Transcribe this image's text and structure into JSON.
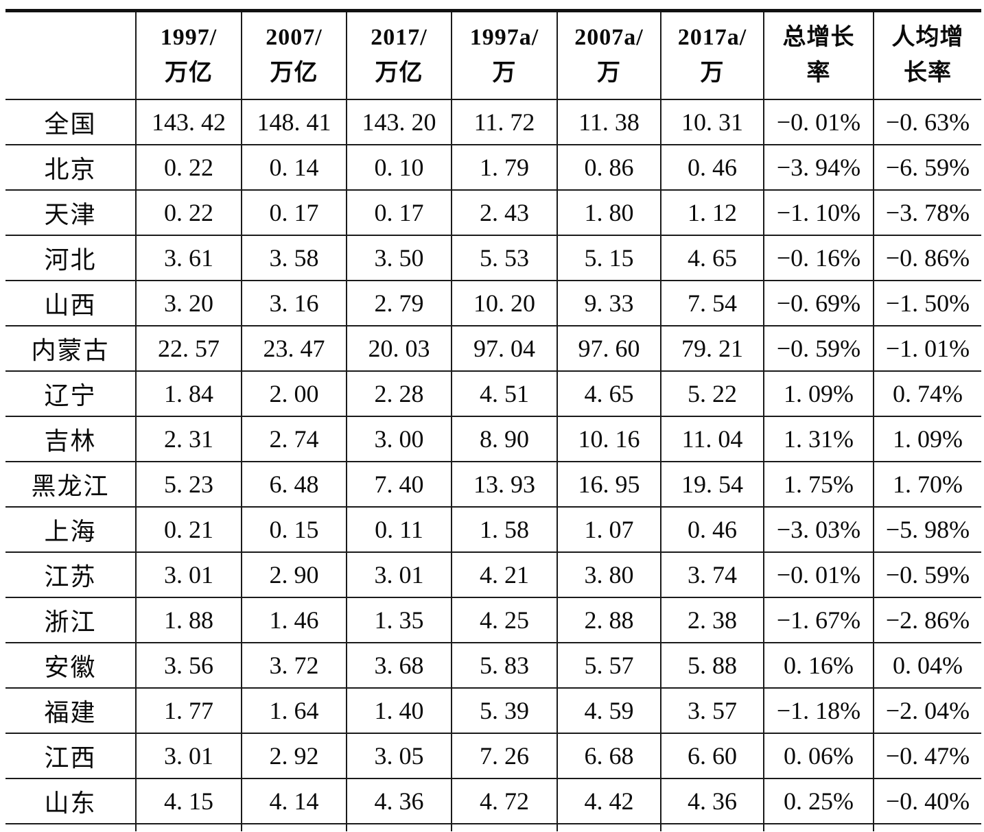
{
  "table": {
    "columns": [
      {
        "line1": "",
        "line2": ""
      },
      {
        "line1": "1997/",
        "line2": "万亿"
      },
      {
        "line1": "2007/",
        "line2": "万亿"
      },
      {
        "line1": "2017/",
        "line2": "万亿"
      },
      {
        "line1": "1997a/",
        "line2": "万"
      },
      {
        "line1": "2007a/",
        "line2": "万"
      },
      {
        "line1": "2017a/",
        "line2": "万"
      },
      {
        "line1": "总增长",
        "line2": "率"
      },
      {
        "line1": "人均增",
        "line2": "长率"
      }
    ],
    "rows": [
      {
        "name": "全国",
        "values": [
          "143. 42",
          "148. 41",
          "143. 20",
          "11. 72",
          "11. 38",
          "10. 31",
          "−0. 01%",
          "−0. 63%"
        ]
      },
      {
        "name": "北京",
        "values": [
          "0. 22",
          "0. 14",
          "0. 10",
          "1. 79",
          "0. 86",
          "0. 46",
          "−3. 94%",
          "−6. 59%"
        ]
      },
      {
        "name": "天津",
        "values": [
          "0. 22",
          "0. 17",
          "0. 17",
          "2. 43",
          "1. 80",
          "1. 12",
          "−1. 10%",
          "−3. 78%"
        ]
      },
      {
        "name": "河北",
        "values": [
          "3. 61",
          "3. 58",
          "3. 50",
          "5. 53",
          "5. 15",
          "4. 65",
          "−0. 16%",
          "−0. 86%"
        ]
      },
      {
        "name": "山西",
        "values": [
          "3. 20",
          "3. 16",
          "2. 79",
          "10. 20",
          "9. 33",
          "7. 54",
          "−0. 69%",
          "−1. 50%"
        ]
      },
      {
        "name": "内蒙古",
        "values": [
          "22. 57",
          "23. 47",
          "20. 03",
          "97. 04",
          "97. 60",
          "79. 21",
          "−0. 59%",
          "−1. 01%"
        ]
      },
      {
        "name": "辽宁",
        "values": [
          "1. 84",
          "2. 00",
          "2. 28",
          "4. 51",
          "4. 65",
          "5. 22",
          "1. 09%",
          "0. 74%"
        ]
      },
      {
        "name": "吉林",
        "values": [
          "2. 31",
          "2. 74",
          "3. 00",
          "8. 90",
          "10. 16",
          "11. 04",
          "1. 31%",
          "1. 09%"
        ]
      },
      {
        "name": "黑龙江",
        "values": [
          "5. 23",
          "6. 48",
          "7. 40",
          "13. 93",
          "16. 95",
          "19. 54",
          "1. 75%",
          "1. 70%"
        ]
      },
      {
        "name": "上海",
        "values": [
          "0. 21",
          "0. 15",
          "0. 11",
          "1. 58",
          "1. 07",
          "0. 46",
          "−3. 03%",
          "−5. 98%"
        ]
      },
      {
        "name": "江苏",
        "values": [
          "3. 01",
          "2. 90",
          "3. 01",
          "4. 21",
          "3. 80",
          "3. 74",
          "−0. 01%",
          "−0. 59%"
        ]
      },
      {
        "name": "浙江",
        "values": [
          "1. 88",
          "1. 46",
          "1. 35",
          "4. 25",
          "2. 88",
          "2. 38",
          "−1. 67%",
          "−2. 86%"
        ]
      },
      {
        "name": "安徽",
        "values": [
          "3. 56",
          "3. 72",
          "3. 68",
          "5. 83",
          "5. 57",
          "5. 88",
          "0. 16%",
          "0. 04%"
        ]
      },
      {
        "name": "福建",
        "values": [
          "1. 77",
          "1. 64",
          "1. 40",
          "5. 39",
          "4. 59",
          "3. 57",
          "−1. 18%",
          "−2. 04%"
        ]
      },
      {
        "name": "江西",
        "values": [
          "3. 01",
          "2. 92",
          "3. 05",
          "7. 26",
          "6. 68",
          "6. 60",
          "0. 06%",
          "−0. 47%"
        ]
      },
      {
        "name": "山东",
        "values": [
          "4. 15",
          "4. 14",
          "4. 36",
          "4. 72",
          "4. 42",
          "4. 36",
          "0. 25%",
          "−0. 40%"
        ]
      }
    ]
  },
  "colors": {
    "background": "#ffffff",
    "text": "#0a0a0a",
    "rule": "#1a1a1a"
  }
}
